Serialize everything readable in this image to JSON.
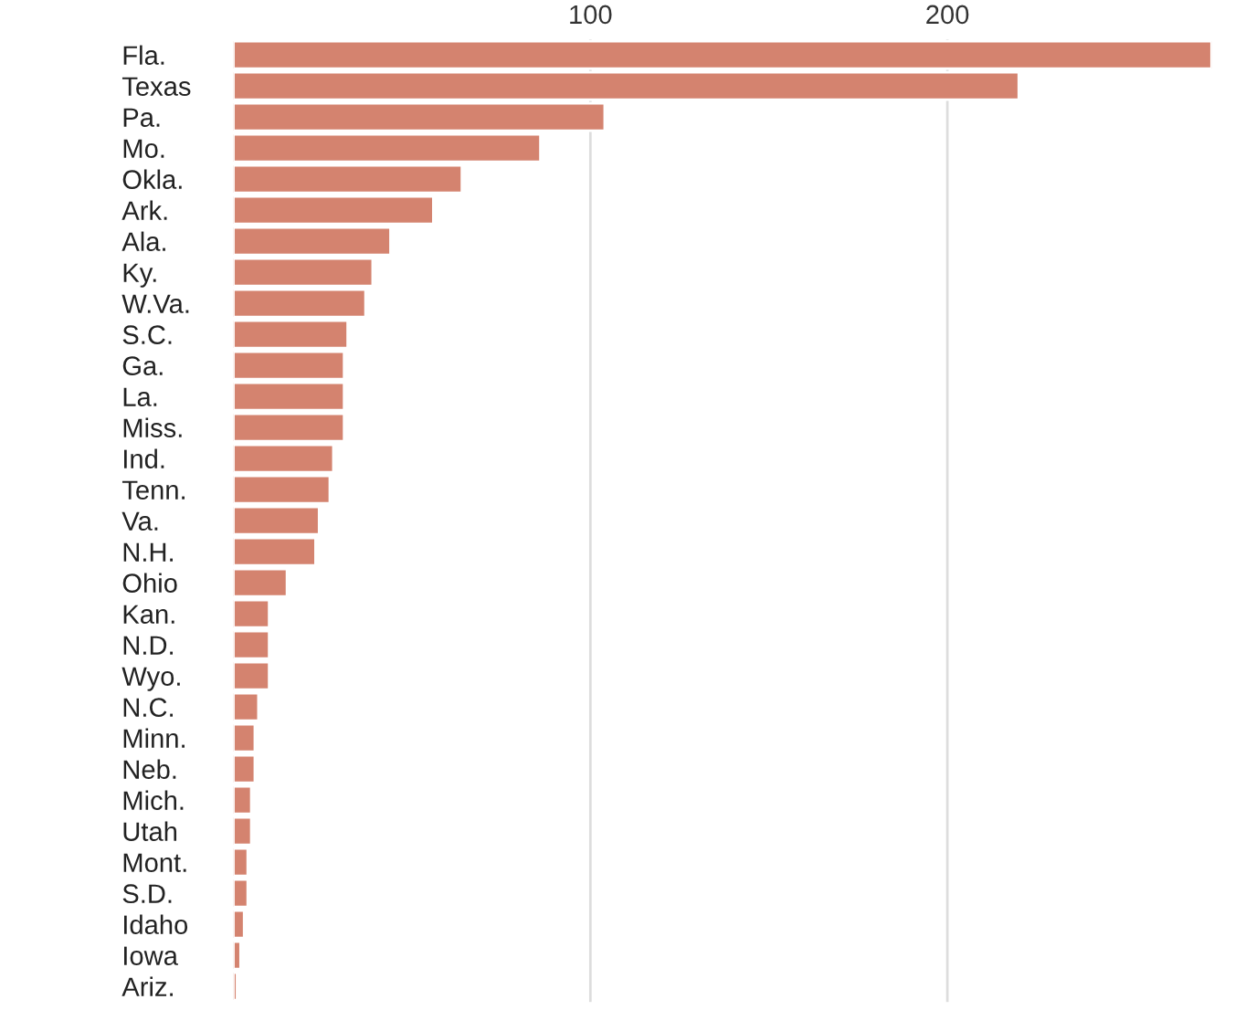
{
  "chart_data": {
    "type": "bar",
    "orientation": "horizontal",
    "categories": [
      "Fla.",
      "Texas",
      "Pa.",
      "Mo.",
      "Okla.",
      "Ark.",
      "Ala.",
      "Ky.",
      "W.Va.",
      "S.C.",
      "Ga.",
      "La.",
      "Miss.",
      "Ind.",
      "Tenn.",
      "Va.",
      "N.H.",
      "Ohio",
      "Kan.",
      "N.D.",
      "Wyo.",
      "N.C.",
      "Minn.",
      "Neb.",
      "Mich.",
      "Utah",
      "Mont.",
      "S.D.",
      "Idaho",
      "Iowa",
      "Ariz."
    ],
    "values": [
      274,
      220,
      104,
      86,
      64,
      56,
      44,
      39,
      37,
      32,
      31,
      31,
      31,
      28,
      27,
      24,
      23,
      15,
      10,
      10,
      10,
      7,
      6,
      6,
      5,
      5,
      4,
      4,
      3,
      2,
      1
    ],
    "color": "#d4836f",
    "xlim": [
      0,
      274
    ],
    "xticks": [
      100,
      200
    ],
    "grid": "x"
  }
}
